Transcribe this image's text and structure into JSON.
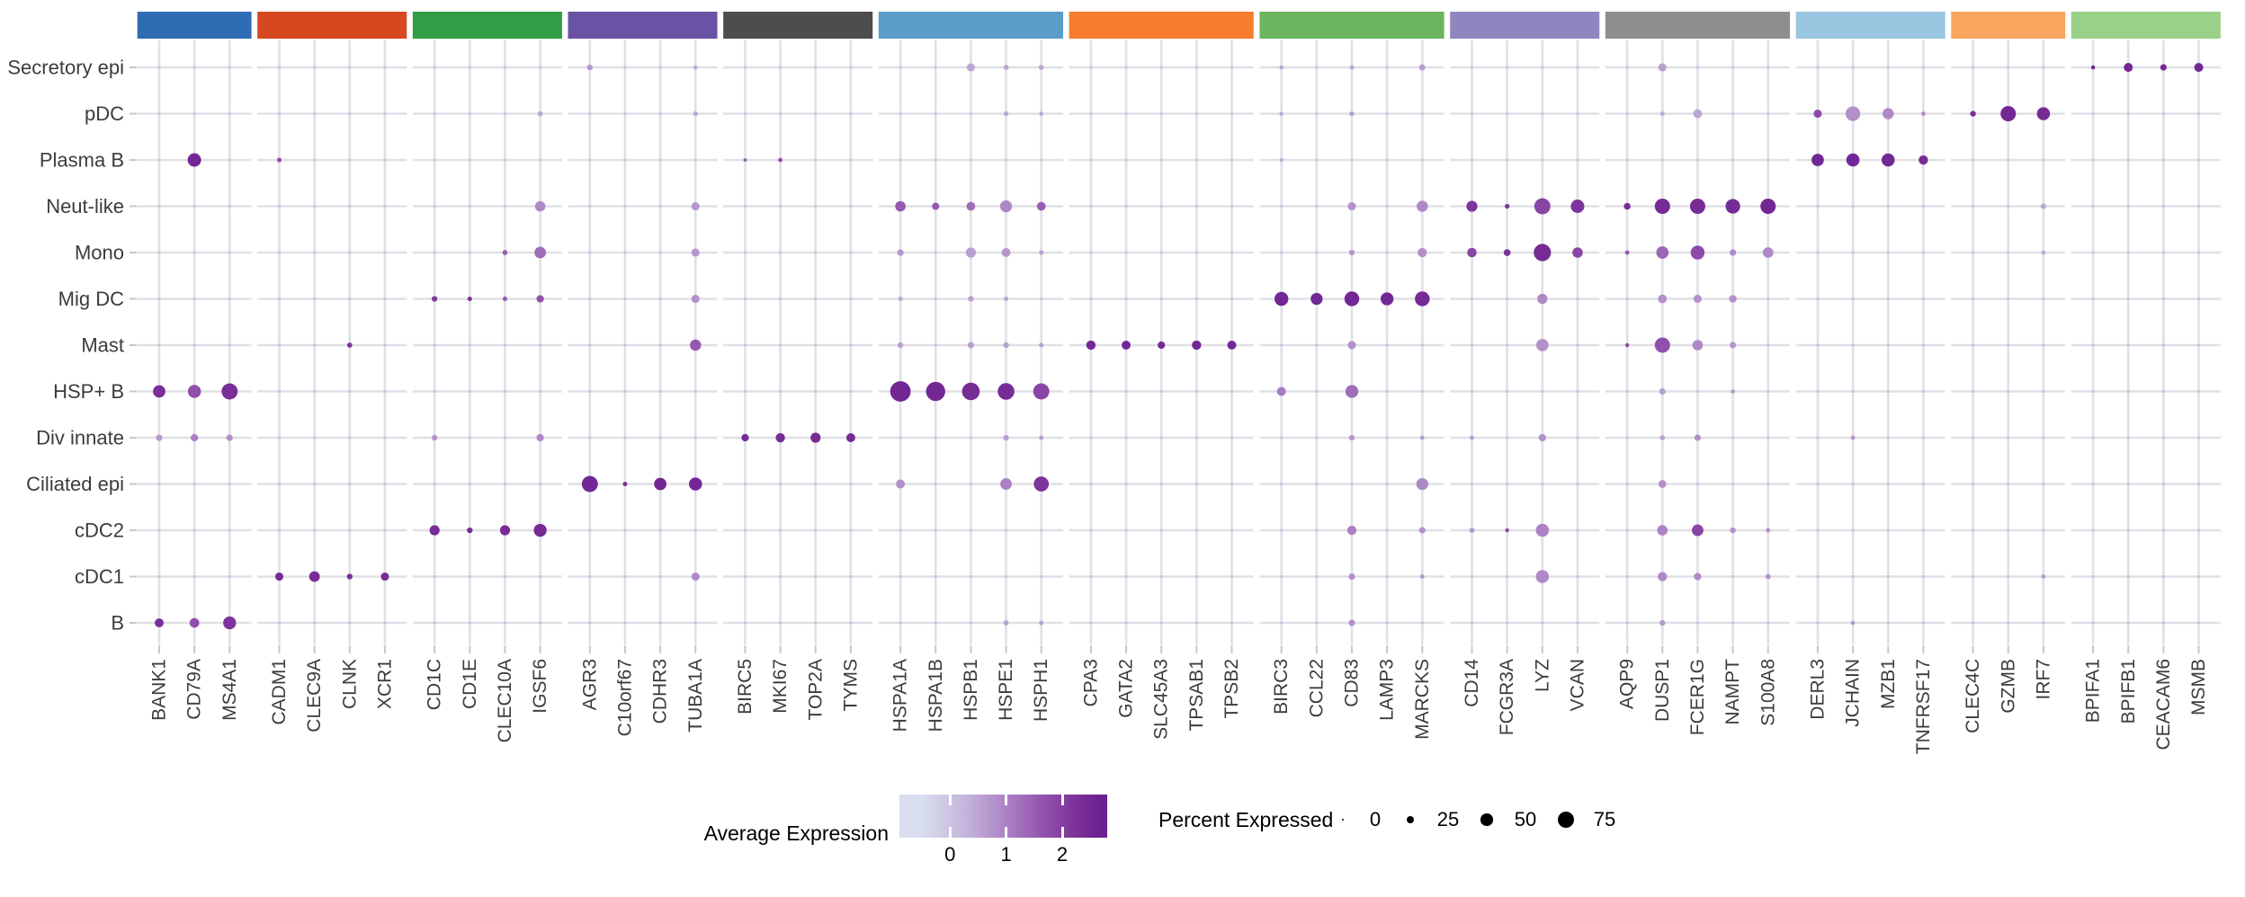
{
  "chart_data": {
    "type": "dotplot",
    "description": "Single-cell marker-gene dot plot: dot size = percent of cells expressing, dot color = average expression",
    "rows": [
      "Secretory epi",
      "pDC",
      "Plasma B",
      "Neut-like",
      "Mono",
      "Mig DC",
      "Mast",
      "HSP+ B",
      "Div innate",
      "Ciliated epi",
      "cDC2",
      "cDC1",
      "B"
    ],
    "gene_groups": [
      {
        "color": "#2e6db4",
        "genes": [
          "BANK1",
          "CD79A",
          "MS4A1"
        ]
      },
      {
        "color": "#d6481f",
        "genes": [
          "CADM1",
          "CLEC9A",
          "CLNK",
          "XCR1"
        ]
      },
      {
        "color": "#2f9e44",
        "genes": [
          "CD1C",
          "CD1E",
          "CLEC10A",
          "IGSF6"
        ]
      },
      {
        "color": "#6a53a5",
        "genes": [
          "AGR3",
          "C10orf67",
          "CDHR3",
          "TUBA1A"
        ]
      },
      {
        "color": "#4d4d4d",
        "genes": [
          "BIRC5",
          "MKI67",
          "TOP2A",
          "TYMS"
        ]
      },
      {
        "color": "#5b9dc9",
        "genes": [
          "HSPA1A",
          "HSPA1B",
          "HSPB1",
          "HSPE1",
          "HSPH1"
        ]
      },
      {
        "color": "#f67d2c",
        "genes": [
          "CPA3",
          "GATA2",
          "SLC45A3",
          "TPSAB1",
          "TPSB2"
        ]
      },
      {
        "color": "#6db55f",
        "genes": [
          "BIRC3",
          "CCL22",
          "CD83",
          "LAMP3",
          "MARCKS"
        ]
      },
      {
        "color": "#9185c1",
        "genes": [
          "CD14",
          "FCGR3A",
          "LYZ",
          "VCAN"
        ]
      },
      {
        "color": "#8e8e8e",
        "genes": [
          "AQP9",
          "DUSP1",
          "FCER1G",
          "NAMPT",
          "S100A8"
        ]
      },
      {
        "color": "#99c6e0",
        "genes": [
          "DERL3",
          "JCHAIN",
          "MZB1",
          "TNFRSF17"
        ]
      },
      {
        "color": "#f9a45f",
        "genes": [
          "CLEC4C",
          "GZMB",
          "IRF7"
        ]
      },
      {
        "color": "#99d189",
        "genes": [
          "BPIFA1",
          "BPIFB1",
          "CEACAM6",
          "MSMB"
        ]
      }
    ],
    "baseline_dot": {
      "percent": 2,
      "expression": 0
    },
    "dots_format": [
      "row",
      "gene",
      "percent_expressed",
      "average_expression"
    ],
    "dots": [
      [
        "Secretory epi",
        "AGR3",
        17,
        0.7
      ],
      [
        "Secretory epi",
        "TUBA1A",
        8,
        0.5
      ],
      [
        "Secretory epi",
        "HSPB1",
        30,
        0.5
      ],
      [
        "Secretory epi",
        "HSPE1",
        14,
        0.5
      ],
      [
        "Secretory epi",
        "HSPH1",
        14,
        0.5
      ],
      [
        "Secretory epi",
        "BIRC3",
        8,
        0.5
      ],
      [
        "Secretory epi",
        "CD83",
        10,
        0.5
      ],
      [
        "Secretory epi",
        "MARCKS",
        20,
        0.6
      ],
      [
        "Secretory epi",
        "DUSP1",
        30,
        0.6
      ],
      [
        "Secretory epi",
        "BPIFA1",
        8,
        2.5
      ],
      [
        "Secretory epi",
        "BPIFB1",
        34,
        2.5
      ],
      [
        "Secretory epi",
        "CEACAM6",
        21,
        2.4
      ],
      [
        "Secretory epi",
        "MSMB",
        34,
        2.5
      ],
      [
        "pDC",
        "IGSF6",
        14,
        0.5
      ],
      [
        "pDC",
        "TUBA1A",
        12,
        0.5
      ],
      [
        "pDC",
        "HSPE1",
        12,
        0.5
      ],
      [
        "pDC",
        "HSPH1",
        9,
        0.5
      ],
      [
        "pDC",
        "BIRC3",
        8,
        0.5
      ],
      [
        "pDC",
        "CD83",
        12,
        0.6
      ],
      [
        "pDC",
        "DUSP1",
        10,
        0.4
      ],
      [
        "pDC",
        "FCER1G",
        34,
        0.5
      ],
      [
        "pDC",
        "DERL3",
        30,
        1.8
      ],
      [
        "pDC",
        "JCHAIN",
        64,
        0.8
      ],
      [
        "pDC",
        "MZB1",
        46,
        0.9
      ],
      [
        "pDC",
        "TNFRSF17",
        9,
        0.9
      ],
      [
        "pDC",
        "CLEC4C",
        17,
        2.3
      ],
      [
        "pDC",
        "GZMB",
        68,
        2.5
      ],
      [
        "pDC",
        "IRF7",
        56,
        2.4
      ],
      [
        "Plasma B",
        "CD79A",
        58,
        2.5
      ],
      [
        "Plasma B",
        "CADM1",
        11,
        1.8
      ],
      [
        "Plasma B",
        "BIRC5",
        5,
        1.5
      ],
      [
        "Plasma B",
        "MKI67",
        9,
        1.8
      ],
      [
        "Plasma B",
        "BIRC3",
        6,
        0.5
      ],
      [
        "Plasma B",
        "DERL3",
        52,
        2.5
      ],
      [
        "Plasma B",
        "JCHAIN",
        56,
        2.5
      ],
      [
        "Plasma B",
        "MZB1",
        56,
        2.5
      ],
      [
        "Plasma B",
        "TNFRSF17",
        36,
        2.4
      ],
      [
        "Neut-like",
        "IGSF6",
        42,
        0.9
      ],
      [
        "Neut-like",
        "TUBA1A",
        30,
        0.7
      ],
      [
        "Neut-like",
        "HSPA1A",
        42,
        1.6
      ],
      [
        "Neut-like",
        "HSPA1B",
        25,
        1.6
      ],
      [
        "Neut-like",
        "HSPB1",
        33,
        1.3
      ],
      [
        "Neut-like",
        "HSPE1",
        50,
        0.9
      ],
      [
        "Neut-like",
        "HSPH1",
        33,
        1.5
      ],
      [
        "Neut-like",
        "CD83",
        30,
        0.8
      ],
      [
        "Neut-like",
        "MARCKS",
        46,
        0.9
      ],
      [
        "Neut-like",
        "CD14",
        45,
        2.2
      ],
      [
        "Neut-like",
        "FCGR3A",
        12,
        2.2
      ],
      [
        "Neut-like",
        "LYZ",
        72,
        1.9
      ],
      [
        "Neut-like",
        "VCAN",
        58,
        2.2
      ],
      [
        "Neut-like",
        "AQP9",
        22,
        2.4
      ],
      [
        "Neut-like",
        "DUSP1",
        68,
        2.4
      ],
      [
        "Neut-like",
        "FCER1G",
        68,
        2.4
      ],
      [
        "Neut-like",
        "NAMPT",
        64,
        2.4
      ],
      [
        "Neut-like",
        "S100A8",
        68,
        2.5
      ],
      [
        "Neut-like",
        "IRF7",
        16,
        0.5
      ],
      [
        "Mono",
        "CLEC10A",
        14,
        1.5
      ],
      [
        "Mono",
        "IGSF6",
        48,
        1.3
      ],
      [
        "Mono",
        "TUBA1A",
        30,
        0.7
      ],
      [
        "Mono",
        "HSPA1A",
        21,
        0.7
      ],
      [
        "Mono",
        "HSPB1",
        40,
        0.6
      ],
      [
        "Mono",
        "HSPE1",
        34,
        0.7
      ],
      [
        "Mono",
        "HSPH1",
        11,
        0.6
      ],
      [
        "Mono",
        "CD83",
        17,
        0.7
      ],
      [
        "Mono",
        "MARCKS",
        36,
        0.8
      ],
      [
        "Mono",
        "CD14",
        37,
        1.9
      ],
      [
        "Mono",
        "FCGR3A",
        23,
        2.2
      ],
      [
        "Mono",
        "LYZ",
        78,
        2.4
      ],
      [
        "Mono",
        "VCAN",
        42,
        1.9
      ],
      [
        "Mono",
        "AQP9",
        10,
        1.5
      ],
      [
        "Mono",
        "DUSP1",
        52,
        1.4
      ],
      [
        "Mono",
        "FCER1G",
        60,
        1.8
      ],
      [
        "Mono",
        "NAMPT",
        21,
        0.9
      ],
      [
        "Mono",
        "S100A8",
        43,
        0.9
      ],
      [
        "Mono",
        "IRF7",
        8,
        0.5
      ],
      [
        "Mig DC",
        "CD1C",
        17,
        2.1
      ],
      [
        "Mig DC",
        "CD1E",
        11,
        2.2
      ],
      [
        "Mig DC",
        "CLEC10A",
        11,
        1.6
      ],
      [
        "Mig DC",
        "IGSF6",
        26,
        1.7
      ],
      [
        "Mig DC",
        "TUBA1A",
        30,
        0.8
      ],
      [
        "Mig DC",
        "HSPA1A",
        11,
        0.5
      ],
      [
        "Mig DC",
        "HSPB1",
        17,
        0.6
      ],
      [
        "Mig DC",
        "HSPE1",
        11,
        0.5
      ],
      [
        "Mig DC",
        "BIRC3",
        60,
        2.5
      ],
      [
        "Mig DC",
        "CCL22",
        50,
        2.5
      ],
      [
        "Mig DC",
        "CD83",
        65,
        2.5
      ],
      [
        "Mig DC",
        "LAMP3",
        55,
        2.5
      ],
      [
        "Mig DC",
        "MARCKS",
        65,
        2.4
      ],
      [
        "Mig DC",
        "LYZ",
        40,
        0.9
      ],
      [
        "Mig DC",
        "DUSP1",
        33,
        0.8
      ],
      [
        "Mig DC",
        "FCER1G",
        30,
        0.8
      ],
      [
        "Mig DC",
        "NAMPT",
        27,
        0.8
      ],
      [
        "Mast",
        "CLNK",
        14,
        2.2
      ],
      [
        "Mast",
        "TUBA1A",
        46,
        1.6
      ],
      [
        "Mast",
        "HSPA1A",
        17,
        0.6
      ],
      [
        "Mast",
        "HSPB1",
        21,
        0.6
      ],
      [
        "Mast",
        "HSPE1",
        17,
        0.6
      ],
      [
        "Mast",
        "HSPH1",
        11,
        0.6
      ],
      [
        "Mast",
        "CPA3",
        36,
        2.5
      ],
      [
        "Mast",
        "GATA2",
        34,
        2.5
      ],
      [
        "Mast",
        "SLC45A3",
        26,
        2.4
      ],
      [
        "Mast",
        "TPSAB1",
        36,
        2.5
      ],
      [
        "Mast",
        "TPSB2",
        34,
        2.5
      ],
      [
        "Mast",
        "CD83",
        30,
        0.8
      ],
      [
        "Mast",
        "LYZ",
        52,
        0.8
      ],
      [
        "Mast",
        "AQP9",
        8,
        1.8
      ],
      [
        "Mast",
        "DUSP1",
        68,
        1.7
      ],
      [
        "Mast",
        "FCER1G",
        42,
        0.9
      ],
      [
        "Mast",
        "NAMPT",
        21,
        0.7
      ],
      [
        "HSP+ B",
        "BANK1",
        52,
        2.3
      ],
      [
        "HSP+ B",
        "CD79A",
        56,
        1.7
      ],
      [
        "HSP+ B",
        "MS4A1",
        72,
        2.3
      ],
      [
        "HSP+ B",
        "HSPA1A",
        95,
        2.5
      ],
      [
        "HSP+ B",
        "HSPA1B",
        88,
        2.5
      ],
      [
        "HSP+ B",
        "HSPB1",
        80,
        2.4
      ],
      [
        "HSP+ B",
        "HSPE1",
        75,
        2.4
      ],
      [
        "HSP+ B",
        "HSPH1",
        72,
        1.9
      ],
      [
        "HSP+ B",
        "BIRC3",
        34,
        1.1
      ],
      [
        "HSP+ B",
        "CD83",
        55,
        1.3
      ],
      [
        "HSP+ B",
        "DUSP1",
        21,
        0.6
      ],
      [
        "HSP+ B",
        "NAMPT",
        10,
        0.6
      ],
      [
        "Div innate",
        "BANK1",
        21,
        0.7
      ],
      [
        "Div innate",
        "CD79A",
        26,
        1.0
      ],
      [
        "Div innate",
        "MS4A1",
        21,
        0.8
      ],
      [
        "Div innate",
        "CD1C",
        17,
        0.8
      ],
      [
        "Div innate",
        "IGSF6",
        26,
        0.9
      ],
      [
        "Div innate",
        "BIRC5",
        26,
        2.4
      ],
      [
        "Div innate",
        "MKI67",
        36,
        2.4
      ],
      [
        "Div innate",
        "TOP2A",
        40,
        2.4
      ],
      [
        "Div innate",
        "TYMS",
        34,
        2.4
      ],
      [
        "Div innate",
        "HSPE1",
        17,
        0.6
      ],
      [
        "Div innate",
        "HSPH1",
        10,
        0.6
      ],
      [
        "Div innate",
        "CD83",
        17,
        0.7
      ],
      [
        "Div innate",
        "MARCKS",
        10,
        0.6
      ],
      [
        "Div innate",
        "CD14",
        10,
        0.6
      ],
      [
        "Div innate",
        "LYZ",
        26,
        0.8
      ],
      [
        "Div innate",
        "DUSP1",
        14,
        0.6
      ],
      [
        "Div innate",
        "FCER1G",
        21,
        0.8
      ],
      [
        "Div innate",
        "JCHAIN",
        10,
        0.7
      ],
      [
        "Ciliated epi",
        "AGR3",
        72,
        2.5
      ],
      [
        "Ciliated epi",
        "C10orf67",
        10,
        2.3
      ],
      [
        "Ciliated epi",
        "CDHR3",
        52,
        2.5
      ],
      [
        "Ciliated epi",
        "TUBA1A",
        56,
        2.5
      ],
      [
        "Ciliated epi",
        "HSPA1A",
        34,
        0.8
      ],
      [
        "Ciliated epi",
        "HSPE1",
        48,
        1.0
      ],
      [
        "Ciliated epi",
        "HSPH1",
        66,
        2.2
      ],
      [
        "Ciliated epi",
        "MARCKS",
        50,
        0.9
      ],
      [
        "Ciliated epi",
        "DUSP1",
        28,
        0.8
      ],
      [
        "cDC2",
        "CD1C",
        40,
        2.4
      ],
      [
        "cDC2",
        "CD1E",
        17,
        2.3
      ],
      [
        "cDC2",
        "CLEC10A",
        40,
        2.4
      ],
      [
        "cDC2",
        "IGSF6",
        55,
        2.4
      ],
      [
        "cDC2",
        "CD83",
        36,
        1.0
      ],
      [
        "cDC2",
        "MARCKS",
        21,
        0.8
      ],
      [
        "cDC2",
        "CD14",
        14,
        0.7
      ],
      [
        "cDC2",
        "FCGR3A",
        8,
        1.8
      ],
      [
        "cDC2",
        "LYZ",
        56,
        1.0
      ],
      [
        "cDC2",
        "DUSP1",
        42,
        1.0
      ],
      [
        "cDC2",
        "FCER1G",
        48,
        1.9
      ],
      [
        "cDC2",
        "NAMPT",
        17,
        0.8
      ],
      [
        "cDC2",
        "S100A8",
        10,
        0.8
      ],
      [
        "cDC1",
        "CADM1",
        30,
        2.4
      ],
      [
        "cDC1",
        "CLEC9A",
        43,
        2.4
      ],
      [
        "cDC1",
        "CLNK",
        17,
        2.3
      ],
      [
        "cDC1",
        "XCR1",
        30,
        2.4
      ],
      [
        "cDC1",
        "TUBA1A",
        30,
        0.9
      ],
      [
        "cDC1",
        "CD83",
        21,
        0.8
      ],
      [
        "cDC1",
        "MARCKS",
        10,
        0.7
      ],
      [
        "cDC1",
        "LYZ",
        56,
        0.9
      ],
      [
        "cDC1",
        "DUSP1",
        36,
        0.9
      ],
      [
        "cDC1",
        "FCER1G",
        26,
        0.9
      ],
      [
        "cDC1",
        "S100A8",
        14,
        0.8
      ],
      [
        "cDC1",
        "IRF7",
        10,
        0.6
      ],
      [
        "B",
        "BANK1",
        34,
        2.3
      ],
      [
        "B",
        "CD79A",
        38,
        1.7
      ],
      [
        "B",
        "MS4A1",
        55,
        2.2
      ],
      [
        "B",
        "HSPE1",
        14,
        0.6
      ],
      [
        "B",
        "HSPH1",
        10,
        0.6
      ],
      [
        "B",
        "CD83",
        21,
        0.8
      ],
      [
        "B",
        "DUSP1",
        17,
        0.7
      ],
      [
        "B",
        "JCHAIN",
        8,
        0.8
      ]
    ],
    "legend": {
      "expression_title": "Average Expression",
      "expression_ticks": [
        0,
        1,
        2
      ],
      "expression_range": [
        -0.9,
        2.8
      ],
      "color_anchors": [
        [
          -0.5,
          "#d9deee"
        ],
        [
          0.3,
          "#c3b4da"
        ],
        [
          1.0,
          "#ac82c4"
        ],
        [
          1.7,
          "#9150ab"
        ],
        [
          2.3,
          "#7a2e97"
        ],
        [
          2.7,
          "#6a2090"
        ]
      ],
      "percent_title": "Percent Expressed",
      "percent_items": [
        0,
        25,
        50,
        75
      ]
    },
    "style": {
      "grid_color": "#e0e0e6",
      "tick_color": "#c8c8c8",
      "axis_text_color": "#3c3c3c",
      "legend_dot_color": "#000000",
      "background": "#ffffff"
    }
  }
}
